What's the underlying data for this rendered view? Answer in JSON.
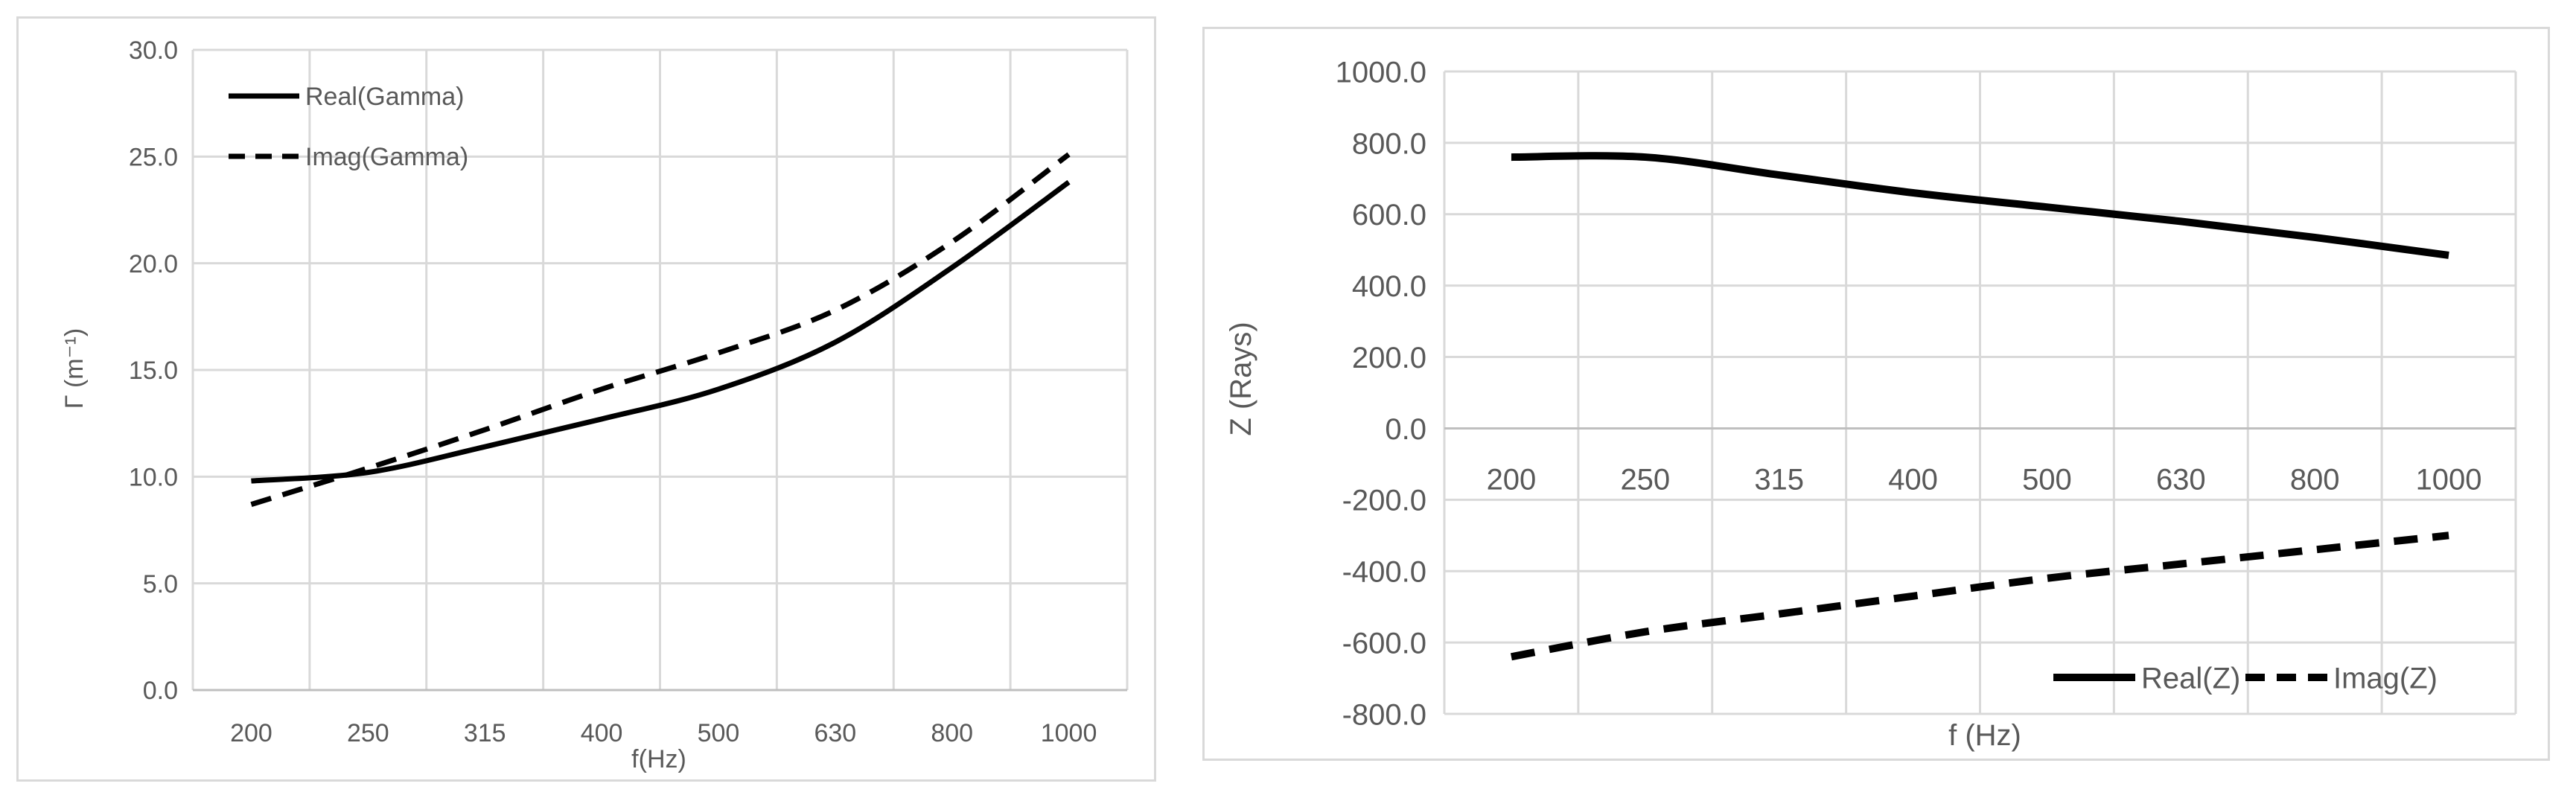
{
  "chart_data": [
    {
      "type": "line",
      "categories": [
        "200",
        "250",
        "315",
        "400",
        "500",
        "630",
        "800",
        "1000"
      ],
      "xlabel": "f(Hz)",
      "ylabel": "Γ (m⁻¹)",
      "ylim": [
        0,
        30
      ],
      "yticks": [
        "0.0",
        "5.0",
        "10.0",
        "15.0",
        "20.0",
        "25.0",
        "30.0"
      ],
      "grid": true,
      "legend_position": "top-left",
      "series": [
        {
          "name": "Real(Gamma)",
          "style": "solid",
          "color": "#000000",
          "values": [
            9.8,
            10.2,
            11.4,
            12.7,
            14.1,
            16.3,
            19.8,
            23.8
          ]
        },
        {
          "name": "Imag(Gamma)",
          "style": "dashed",
          "color": "#000000",
          "values": [
            8.7,
            10.4,
            12.2,
            14.1,
            15.8,
            17.8,
            21.0,
            25.1
          ]
        }
      ]
    },
    {
      "type": "line",
      "categories": [
        "200",
        "250",
        "315",
        "400",
        "500",
        "630",
        "800",
        "1000"
      ],
      "xlabel": "f (Hz)",
      "ylabel": "Z (Rays)",
      "ylim": [
        -800,
        1000
      ],
      "yticks": [
        "-800.0",
        "-600.0",
        "-400.0",
        "-200.0",
        "0.0",
        "200.0",
        "400.0",
        "600.0",
        "800.0",
        "1000.0"
      ],
      "grid": true,
      "legend_position": "bottom-right",
      "series": [
        {
          "name": "Real(Z)",
          "style": "solid",
          "color": "#000000",
          "values": [
            760,
            760,
            710,
            660,
            620,
            580,
            535,
            485
          ]
        },
        {
          "name": "Imag(Z)",
          "style": "dashed",
          "color": "#000000",
          "values": [
            -640,
            -570,
            -520,
            -470,
            -420,
            -380,
            -340,
            -300
          ]
        }
      ]
    }
  ]
}
